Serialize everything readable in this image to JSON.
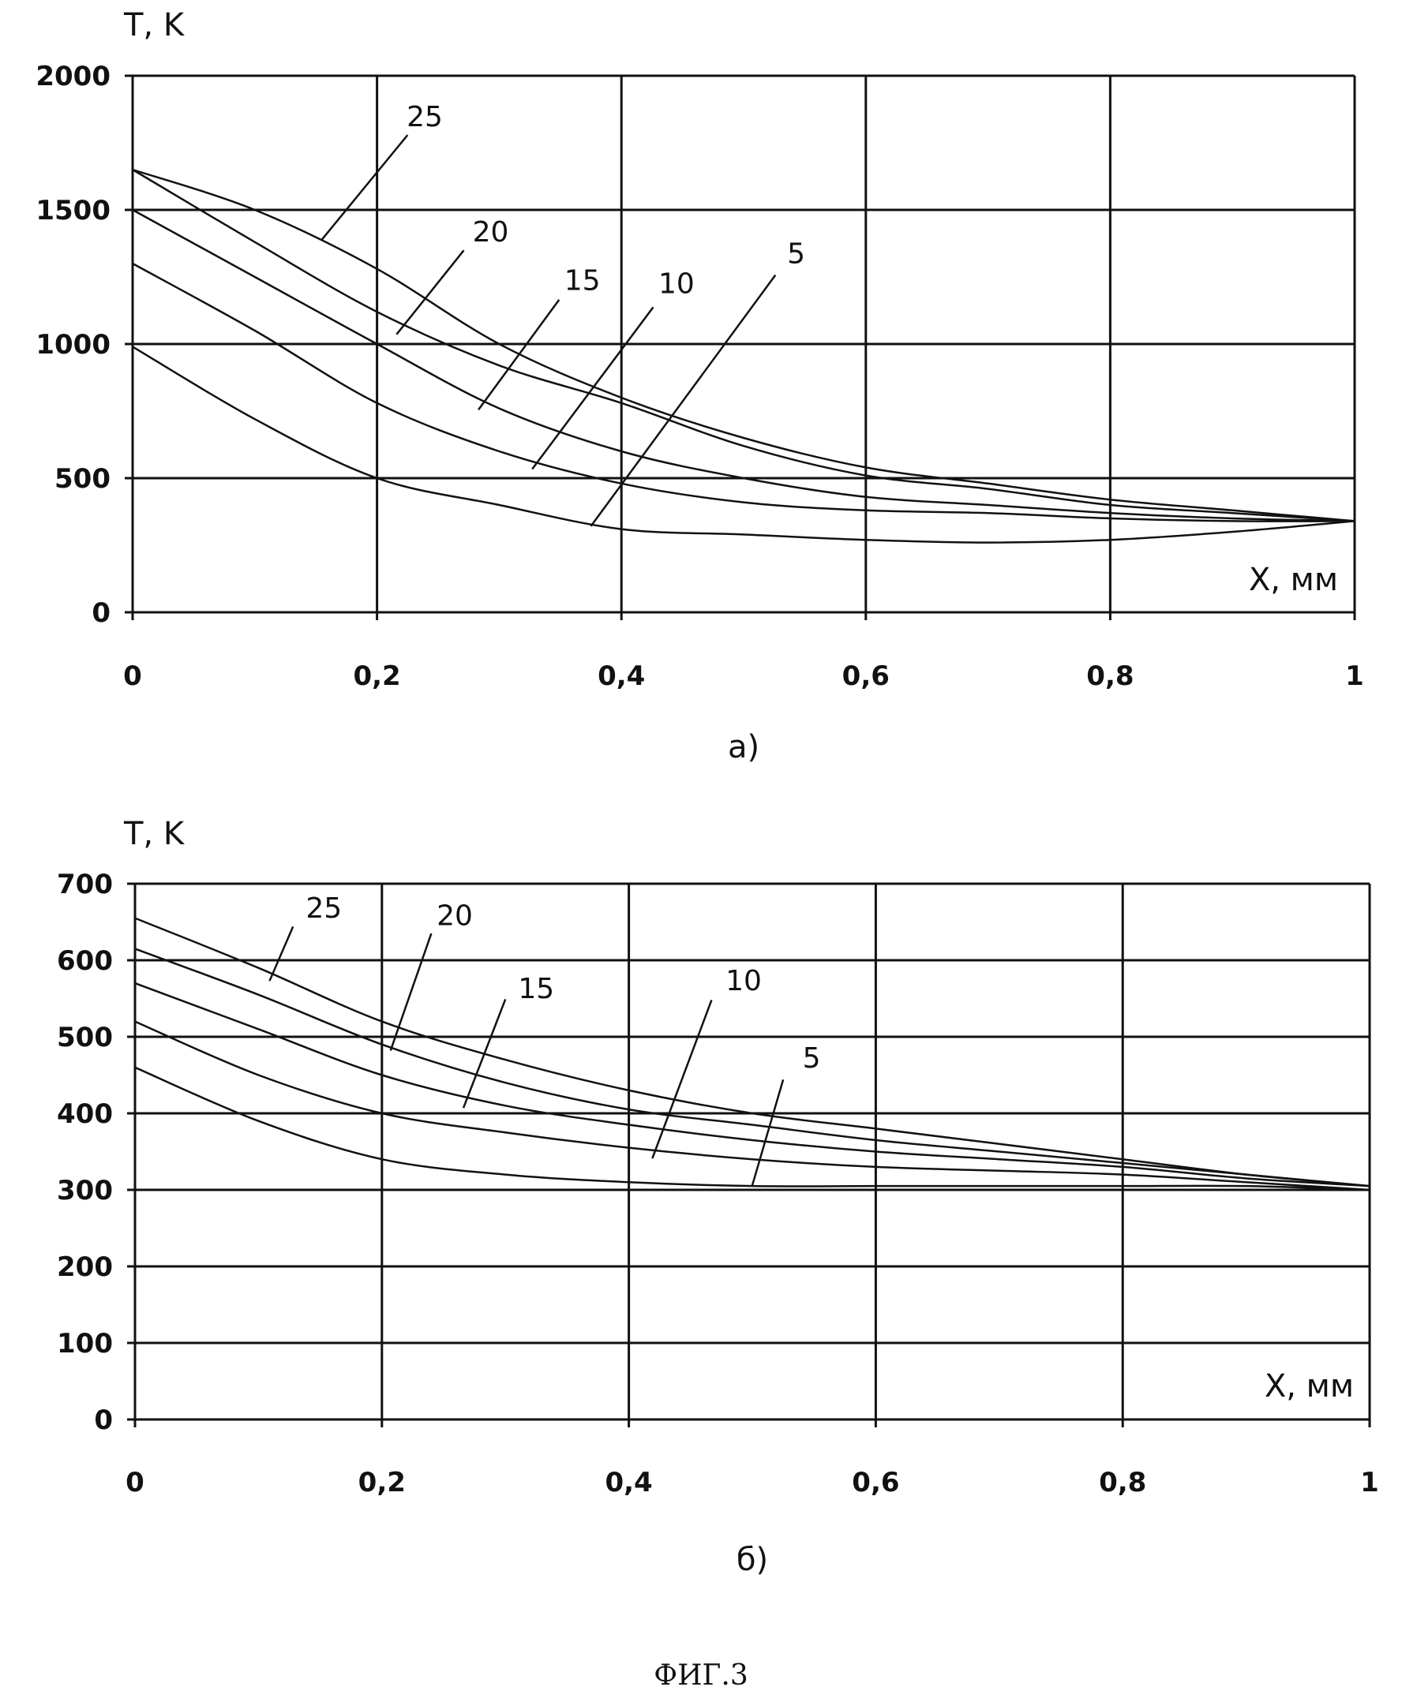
{
  "figure_caption": "ФИГ.3",
  "chart_data": [
    {
      "type": "line",
      "panel_label": "а)",
      "ylabel": "T, K",
      "xlabel": "X, мм",
      "xlim": [
        0,
        1
      ],
      "ylim": [
        0,
        2000
      ],
      "grid": true,
      "xticks": [
        0,
        0.2,
        0.4,
        0.6,
        0.8,
        1
      ],
      "xtick_labels": [
        "0",
        "0,2",
        "0,4",
        "0,6",
        "0,8",
        "1"
      ],
      "yticks": [
        0,
        500,
        1000,
        1500,
        2000
      ],
      "ytick_labels": [
        "0",
        "500",
        "1000",
        "1500",
        "2000"
      ],
      "x": [
        0,
        0.1,
        0.2,
        0.3,
        0.4,
        0.5,
        0.6,
        0.7,
        0.8,
        0.9,
        1
      ],
      "series": [
        {
          "name": "25",
          "values": [
            1650,
            1500,
            1280,
            1000,
            800,
            650,
            540,
            480,
            420,
            380,
            340
          ]
        },
        {
          "name": "20",
          "values": [
            1650,
            1380,
            1120,
            920,
            780,
            620,
            510,
            460,
            400,
            370,
            340
          ]
        },
        {
          "name": "15",
          "values": [
            1500,
            1250,
            1000,
            760,
            600,
            500,
            430,
            400,
            370,
            350,
            340
          ]
        },
        {
          "name": "10",
          "values": [
            1300,
            1050,
            780,
            600,
            480,
            410,
            380,
            370,
            350,
            340,
            340
          ]
        },
        {
          "name": "5",
          "values": [
            990,
            720,
            500,
            400,
            310,
            290,
            270,
            260,
            270,
            300,
            340
          ]
        }
      ]
    },
    {
      "type": "line",
      "panel_label": "б)",
      "ylabel": "T, K",
      "xlabel": "X, мм",
      "xlim": [
        0,
        1
      ],
      "ylim": [
        0,
        700
      ],
      "grid": true,
      "xticks": [
        0,
        0.2,
        0.4,
        0.6,
        0.8,
        1
      ],
      "xtick_labels": [
        "0",
        "0,2",
        "0,4",
        "0,6",
        "0,8",
        "1"
      ],
      "yticks": [
        0,
        100,
        200,
        300,
        400,
        500,
        600,
        700
      ],
      "ytick_labels": [
        "0",
        "100",
        "200",
        "300",
        "400",
        "500",
        "600",
        "700"
      ],
      "x": [
        0,
        0.1,
        0.2,
        0.3,
        0.4,
        0.5,
        0.6,
        0.7,
        0.8,
        0.9,
        1
      ],
      "series": [
        {
          "name": "25",
          "values": [
            655,
            590,
            520,
            470,
            430,
            400,
            380,
            360,
            340,
            320,
            305
          ]
        },
        {
          "name": "20",
          "values": [
            615,
            555,
            490,
            440,
            405,
            385,
            365,
            350,
            335,
            320,
            305
          ]
        },
        {
          "name": "15",
          "values": [
            570,
            510,
            450,
            410,
            385,
            365,
            350,
            340,
            330,
            315,
            305
          ]
        },
        {
          "name": "10",
          "values": [
            520,
            450,
            400,
            375,
            355,
            340,
            330,
            325,
            320,
            310,
            300
          ]
        },
        {
          "name": "5",
          "values": [
            460,
            390,
            340,
            320,
            310,
            305,
            305,
            305,
            305,
            305,
            300
          ]
        }
      ]
    }
  ]
}
